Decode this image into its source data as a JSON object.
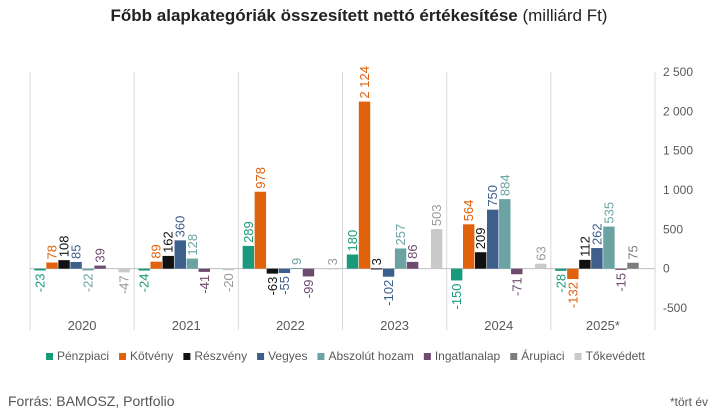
{
  "title_bold": "Főbb alapkategóriák összesített nettó értékesítése",
  "title_rest": "(milliárd Ft)",
  "source": "Forrás: BAMOSZ, Portfolio",
  "footnote": "*tört év",
  "colors": {
    "Pénzpiaci": "#1a9a7c",
    "Kötvény": "#e0620c",
    "Részvény": "#111111",
    "Vegyes": "#3d5f8c",
    "Abszolút hozam": "#6ba3a3",
    "Ingatlanalap": "#6e4a6e",
    "Árupiaci": "#7d7d7d",
    "Tőkevédett": "#c9c9c9"
  },
  "chart_data": {
    "type": "bar",
    "categories": [
      "2020",
      "2021",
      "2022",
      "2023",
      "2024",
      "2025*"
    ],
    "ylim": [
      -500,
      2500
    ],
    "yticks": [
      -500,
      0,
      500,
      1000,
      1500,
      2000,
      2500
    ],
    "ytick_labels": [
      "-500",
      "0",
      "500",
      "1 000",
      "1 500",
      "2 000",
      "2 500"
    ],
    "y_axis_position": "right",
    "grid": "vertical category separators",
    "legend": "bottom",
    "series": [
      {
        "name": "Pénzpiaci",
        "values": [
          -23,
          -24,
          289,
          180,
          -150,
          -28
        ],
        "labels": [
          "-23",
          "-24",
          "289",
          "180",
          "-150",
          "-28"
        ]
      },
      {
        "name": "Kötvény",
        "values": [
          78,
          89,
          978,
          2124,
          564,
          -132
        ],
        "labels": [
          "78",
          "89",
          "978",
          "2 124",
          "564",
          "-132"
        ]
      },
      {
        "name": "Részvény",
        "values": [
          108,
          162,
          -63,
          3,
          209,
          112
        ],
        "labels": [
          "108",
          "162",
          "-63",
          "3",
          "209",
          "112"
        ]
      },
      {
        "name": "Vegyes",
        "values": [
          85,
          360,
          -55,
          -102,
          750,
          262
        ],
        "labels": [
          "85",
          "360",
          "-55",
          "-102",
          "750",
          "262"
        ]
      },
      {
        "name": "Abszolút hozam",
        "values": [
          -22,
          128,
          9,
          257,
          884,
          535
        ],
        "labels": [
          "-22",
          "128",
          "9",
          "257",
          "884",
          "535"
        ]
      },
      {
        "name": "Ingatlanalap",
        "values": [
          39,
          -41,
          -99,
          86,
          -71,
          -15
        ],
        "labels": [
          "39",
          "-41",
          "-99",
          "86",
          "-71",
          "-15"
        ]
      },
      {
        "name": "Árupiaci",
        "values": [
          null,
          null,
          null,
          null,
          null,
          75
        ],
        "labels": [
          null,
          null,
          null,
          null,
          null,
          "75"
        ]
      },
      {
        "name": "Tőkevédett",
        "values": [
          -47,
          -20,
          3,
          503,
          63,
          null
        ],
        "labels": [
          "-47",
          "-20",
          "3",
          "503",
          "63",
          null
        ]
      }
    ]
  }
}
